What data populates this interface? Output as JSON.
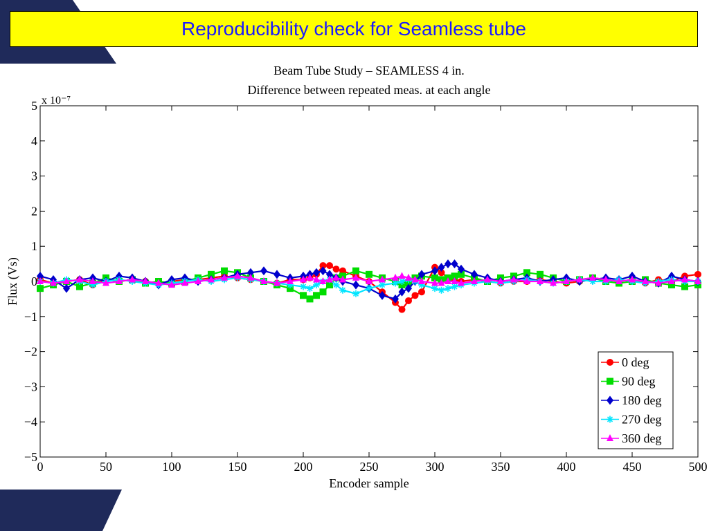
{
  "slide": {
    "title": "Reproducibility check for Seamless tube",
    "colors": {
      "banner_bg": "#ffff00",
      "banner_text": "#1a1aff",
      "decoration_navy": "#1f2a5a"
    }
  },
  "chart_data": {
    "type": "scatter",
    "title": [
      "Beam Tube Study – SEAMLESS 4 in.",
      "Difference between repeated meas. at each angle"
    ],
    "xlabel": "Encoder sample",
    "ylabel": "Flux (Vs)",
    "y_exponent_label": "x 10⁻⁷",
    "xlim": [
      0,
      500
    ],
    "ylim": [
      -5,
      5
    ],
    "xticks": [
      "0",
      "50",
      "100",
      "150",
      "200",
      "250",
      "300",
      "350",
      "400",
      "450",
      "500"
    ],
    "yticks": [
      "−5",
      "−4",
      "−3",
      "−2",
      "−1",
      "0",
      "1",
      "2",
      "3",
      "4",
      "5"
    ],
    "grid": false,
    "legend_position": "bottom-right",
    "x": [
      0,
      10,
      20,
      30,
      40,
      50,
      60,
      70,
      80,
      90,
      100,
      110,
      120,
      130,
      140,
      150,
      160,
      170,
      180,
      190,
      200,
      205,
      210,
      215,
      220,
      225,
      230,
      240,
      250,
      260,
      270,
      275,
      280,
      285,
      290,
      300,
      305,
      310,
      315,
      320,
      330,
      340,
      350,
      360,
      370,
      380,
      390,
      400,
      410,
      420,
      430,
      440,
      450,
      460,
      470,
      480,
      490,
      500
    ],
    "series": [
      {
        "name": "0 deg",
        "color": "#ff0000",
        "marker": "circle",
        "values": [
          0.05,
          -0.05,
          0.0,
          0.05,
          -0.1,
          0.05,
          0.0,
          0.05,
          0.0,
          -0.05,
          0.0,
          0.05,
          0.05,
          0.1,
          0.15,
          0.1,
          0.05,
          0.0,
          -0.05,
          0.05,
          0.05,
          0.1,
          0.2,
          0.45,
          0.45,
          0.35,
          0.3,
          0.15,
          0.0,
          -0.3,
          -0.6,
          -0.8,
          -0.55,
          -0.4,
          -0.3,
          0.4,
          0.25,
          0.1,
          0.05,
          0.0,
          0.05,
          0.0,
          -0.05,
          0.0,
          0.0,
          0.05,
          0.0,
          -0.05,
          0.0,
          0.1,
          0.05,
          0.0,
          0.05,
          -0.05,
          0.05,
          0.0,
          0.15,
          0.2
        ]
      },
      {
        "name": "90 deg",
        "color": "#00dd00",
        "marker": "square",
        "values": [
          -0.2,
          -0.1,
          0.0,
          -0.15,
          -0.05,
          0.1,
          0.0,
          0.05,
          -0.05,
          0.0,
          -0.05,
          0.0,
          0.1,
          0.2,
          0.3,
          0.25,
          0.1,
          0.0,
          -0.1,
          -0.2,
          -0.4,
          -0.5,
          -0.4,
          -0.3,
          -0.1,
          0.1,
          0.15,
          0.3,
          0.2,
          0.1,
          0.0,
          -0.1,
          -0.05,
          0.1,
          0.15,
          0.1,
          0.05,
          0.1,
          0.15,
          0.2,
          0.1,
          0.0,
          0.1,
          0.15,
          0.25,
          0.2,
          0.1,
          0.0,
          0.05,
          0.1,
          0.0,
          -0.05,
          0.0,
          0.05,
          -0.05,
          -0.1,
          -0.15,
          -0.1
        ]
      },
      {
        "name": "180 deg",
        "color": "#0000cc",
        "marker": "diamond",
        "values": [
          0.15,
          0.05,
          -0.2,
          0.05,
          0.1,
          0.0,
          0.15,
          0.1,
          0.0,
          -0.1,
          0.05,
          0.1,
          0.0,
          0.05,
          0.1,
          0.2,
          0.25,
          0.3,
          0.2,
          0.1,
          0.15,
          0.2,
          0.25,
          0.3,
          0.2,
          0.1,
          0.0,
          -0.1,
          -0.2,
          -0.4,
          -0.5,
          -0.3,
          -0.2,
          0.0,
          0.2,
          0.3,
          0.4,
          0.5,
          0.5,
          0.35,
          0.2,
          0.1,
          0.0,
          0.05,
          0.1,
          0.0,
          0.05,
          0.1,
          0.0,
          0.05,
          0.1,
          0.05,
          0.15,
          0.0,
          -0.05,
          0.15,
          0.05,
          0.0
        ]
      },
      {
        "name": "270 deg",
        "color": "#00e5ff",
        "marker": "star",
        "values": [
          0.0,
          -0.05,
          0.05,
          0.0,
          -0.1,
          0.0,
          0.05,
          0.0,
          -0.05,
          -0.1,
          -0.05,
          0.0,
          0.05,
          0.0,
          0.05,
          0.1,
          0.05,
          0.0,
          -0.05,
          -0.1,
          -0.15,
          -0.2,
          -0.1,
          0.0,
          0.05,
          -0.1,
          -0.25,
          -0.35,
          -0.2,
          -0.1,
          -0.05,
          0.0,
          0.05,
          0.0,
          -0.1,
          -0.2,
          -0.25,
          -0.2,
          -0.15,
          -0.1,
          -0.05,
          0.0,
          -0.05,
          0.0,
          0.05,
          0.0,
          -0.05,
          0.0,
          0.05,
          0.0,
          0.0,
          0.05,
          0.0,
          -0.05,
          0.0,
          0.05,
          0.0,
          0.0
        ]
      },
      {
        "name": "360 deg",
        "color": "#ff00ff",
        "marker": "triangle",
        "values": [
          0.0,
          -0.05,
          0.0,
          0.05,
          0.0,
          -0.05,
          0.0,
          0.05,
          0.0,
          -0.05,
          -0.1,
          -0.05,
          0.0,
          0.05,
          0.1,
          0.15,
          0.1,
          0.0,
          -0.05,
          0.0,
          0.05,
          0.1,
          0.05,
          0.0,
          0.05,
          0.1,
          0.05,
          0.1,
          0.0,
          0.05,
          0.1,
          0.15,
          0.1,
          0.05,
          0.0,
          -0.05,
          -0.05,
          0.0,
          0.0,
          -0.05,
          0.0,
          0.05,
          0.0,
          0.05,
          0.0,
          0.0,
          -0.05,
          0.0,
          0.05,
          0.1,
          0.05,
          0.0,
          0.05,
          0.0,
          -0.05,
          0.0,
          0.05,
          0.0
        ]
      }
    ]
  }
}
